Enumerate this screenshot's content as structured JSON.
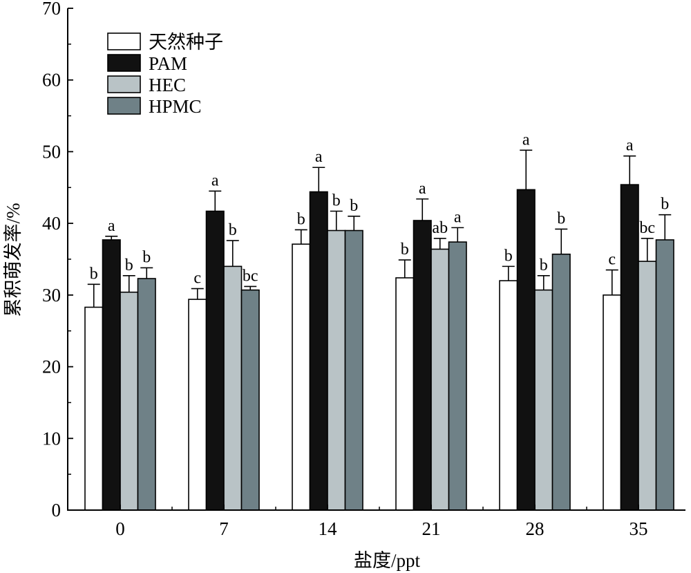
{
  "chart_data": {
    "type": "bar",
    "xlabel": "盐度/ppt",
    "ylabel": "累积萌发率/%",
    "ylim": [
      0,
      70
    ],
    "yticks": [
      0,
      10,
      20,
      30,
      40,
      50,
      60,
      70
    ],
    "categories": [
      "0",
      "7",
      "14",
      "21",
      "28",
      "35"
    ],
    "legend_position": "top-left",
    "grid": false,
    "series": [
      {
        "name": "天然种子",
        "color": "#ffffff",
        "values": [
          28.3,
          29.4,
          37.1,
          32.4,
          32.0,
          30.0
        ],
        "errors": [
          3.2,
          1.5,
          2.0,
          2.5,
          2.0,
          3.5
        ],
        "labels": [
          "b",
          "c",
          "b",
          "b",
          "b",
          "c"
        ]
      },
      {
        "name": "PAM",
        "color": "#111111",
        "values": [
          37.7,
          41.7,
          44.4,
          40.4,
          44.7,
          45.4
        ],
        "errors": [
          0.5,
          2.8,
          3.4,
          3.0,
          5.5,
          4.0
        ],
        "labels": [
          "a",
          "a",
          "a",
          "a",
          "a",
          "a"
        ]
      },
      {
        "name": "HEC",
        "color": "#b9c3c6",
        "values": [
          30.4,
          34.0,
          39.0,
          36.4,
          30.7,
          34.7
        ],
        "errors": [
          2.3,
          3.6,
          2.7,
          1.5,
          2.0,
          3.2
        ],
        "labels": [
          "b",
          "b",
          "b",
          "ab",
          "b",
          "bc"
        ]
      },
      {
        "name": "HPMC",
        "color": "#6f8187",
        "values": [
          32.3,
          30.7,
          39.0,
          37.4,
          35.7,
          37.7
        ],
        "errors": [
          1.5,
          0.5,
          2.0,
          2.0,
          3.5,
          3.5
        ],
        "labels": [
          "b",
          "bc",
          "b",
          "a",
          "b",
          "b"
        ]
      }
    ]
  }
}
